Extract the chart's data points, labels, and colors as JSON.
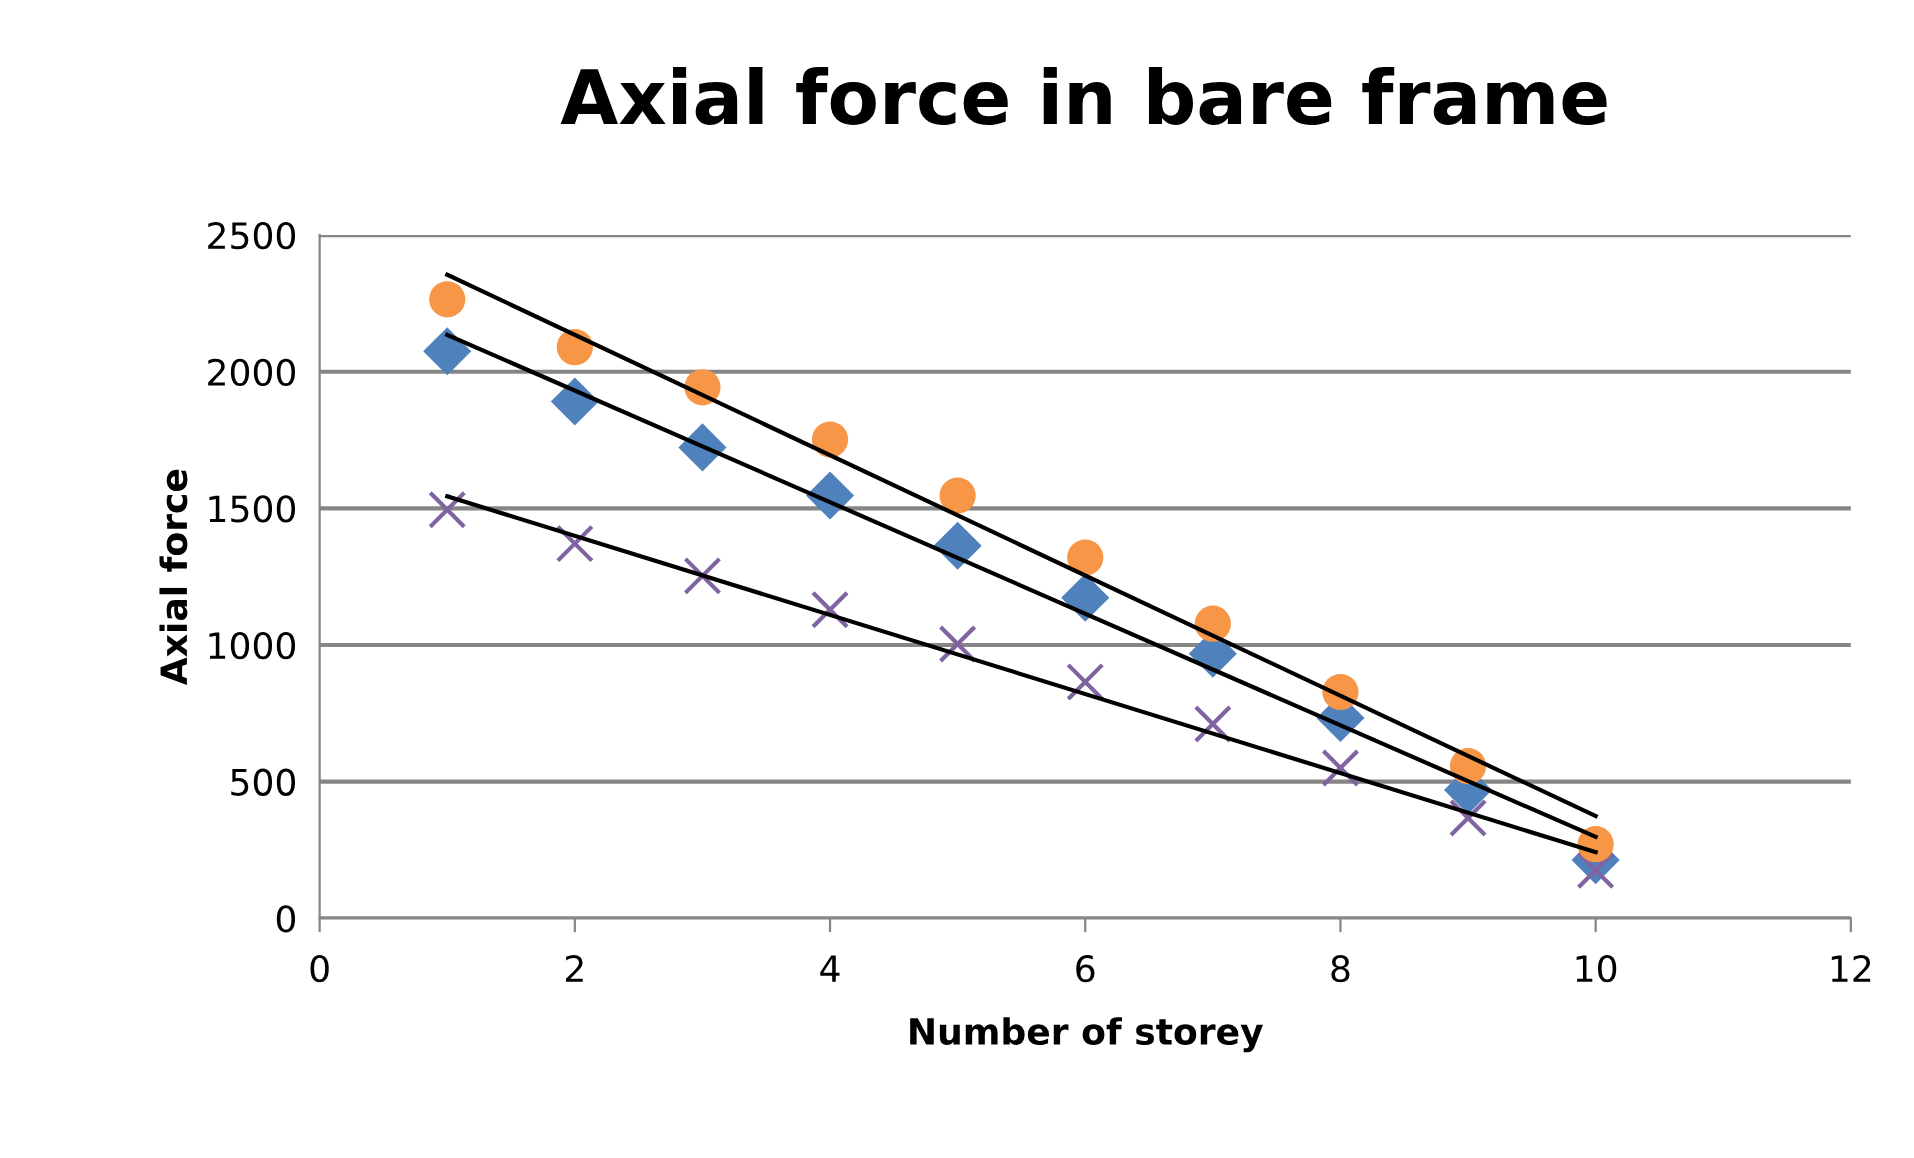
{
  "chart_data": {
    "type": "scatter",
    "title": "Axial force in bare frame",
    "xlabel": "Number of storey",
    "ylabel": "Axial force",
    "x": [
      1,
      2,
      3,
      4,
      5,
      6,
      7,
      8,
      9,
      10
    ],
    "series": [
      {
        "color": "#4f81bd",
        "marker": "diamond",
        "values": [
          2075,
          1891,
          1723,
          1547,
          1363,
          1173,
          968,
          733,
          469,
          213
        ]
      },
      {
        "color": "#8064a2",
        "marker": "cross",
        "values": [
          1495,
          1371,
          1253,
          1129,
          1004,
          865,
          711,
          550,
          367,
          176
        ]
      },
      {
        "color": "#f79646",
        "marker": "circle",
        "values": [
          2265,
          2090,
          1943,
          1752,
          1547,
          1320,
          1078,
          828,
          557,
          271
        ]
      },
      {
        "type": "line",
        "color": "#000000",
        "values": [
          2355,
          null,
          null,
          null,
          null,
          null,
          null,
          null,
          null,
          374
        ]
      },
      {
        "type": "line",
        "color": "#000000",
        "values": [
          2135,
          null,
          null,
          null,
          null,
          null,
          null,
          null,
          null,
          298
        ]
      },
      {
        "type": "line",
        "color": "#000000",
        "values": [
          1544,
          null,
          null,
          null,
          null,
          null,
          null,
          null,
          null,
          242
        ]
      }
    ],
    "xlim": [
      0,
      12
    ],
    "xticks": [
      0,
      2,
      4,
      6,
      8,
      10,
      12
    ],
    "ylim": [
      0,
      2500
    ],
    "yticks": [
      0,
      500,
      1000,
      1500,
      2000,
      2500
    ],
    "grid": "y",
    "legend": false
  }
}
